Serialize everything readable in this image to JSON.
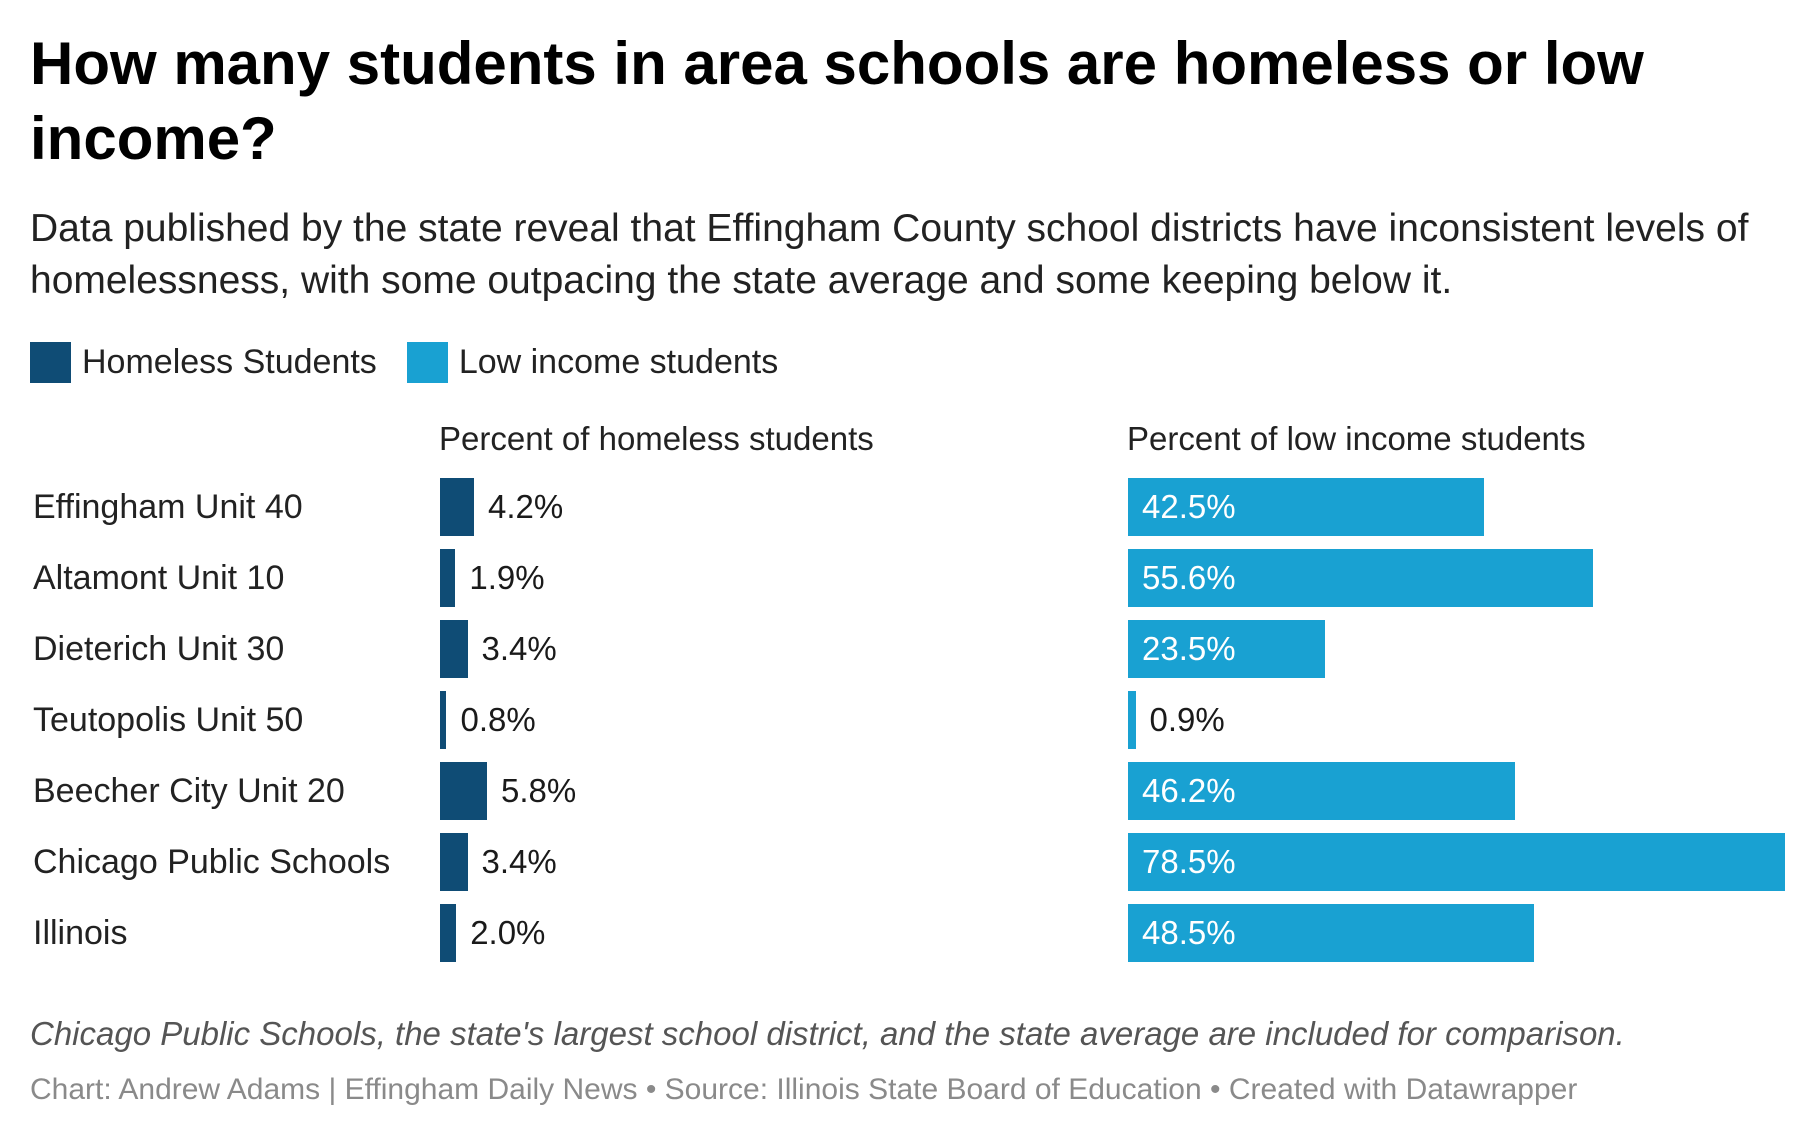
{
  "title": "How many students in area schools are homeless or low income?",
  "subtitle": "Data published by the state reveal that Effingham County school districts have inconsistent levels of homelessness, with some outpacing the state average and some keeping below it.",
  "legend": [
    {
      "label": "Homeless Students",
      "color": "#0f4c75"
    },
    {
      "label": "Low income students",
      "color": "#19a1d2"
    }
  ],
  "note": "Chicago Public Schools, the state's largest school district, and the state average are included for comparison.",
  "credit": "Chart: Andrew Adams | Effingham Daily News • Source: Illinois State Board of Education • Created with Datawrapper",
  "chart_data": {
    "type": "bar",
    "orientation": "horizontal",
    "categories": [
      "Effingham Unit 40",
      "Altamont Unit 10",
      "Dieterich Unit 30",
      "Teutopolis Unit 50",
      "Beecher City Unit 20",
      "Chicago Public Schools",
      "Illinois"
    ],
    "series": [
      {
        "name": "Homeless Students",
        "header": "Percent of homeless students",
        "color": "#0f4c75",
        "values": [
          4.2,
          1.9,
          3.4,
          0.8,
          5.8,
          3.4,
          2.0
        ],
        "labels": [
          "4.2%",
          "1.9%",
          "3.4%",
          "0.8%",
          "5.8%",
          "3.4%",
          "2.0%"
        ]
      },
      {
        "name": "Low income students",
        "header": "Percent of low income students",
        "color": "#19a1d2",
        "values": [
          42.5,
          55.6,
          23.5,
          0.9,
          46.2,
          78.5,
          48.5
        ],
        "labels": [
          "42.5%",
          "55.6%",
          "23.5%",
          "0.9%",
          "46.2%",
          "78.5%",
          "48.5%"
        ]
      }
    ]
  }
}
